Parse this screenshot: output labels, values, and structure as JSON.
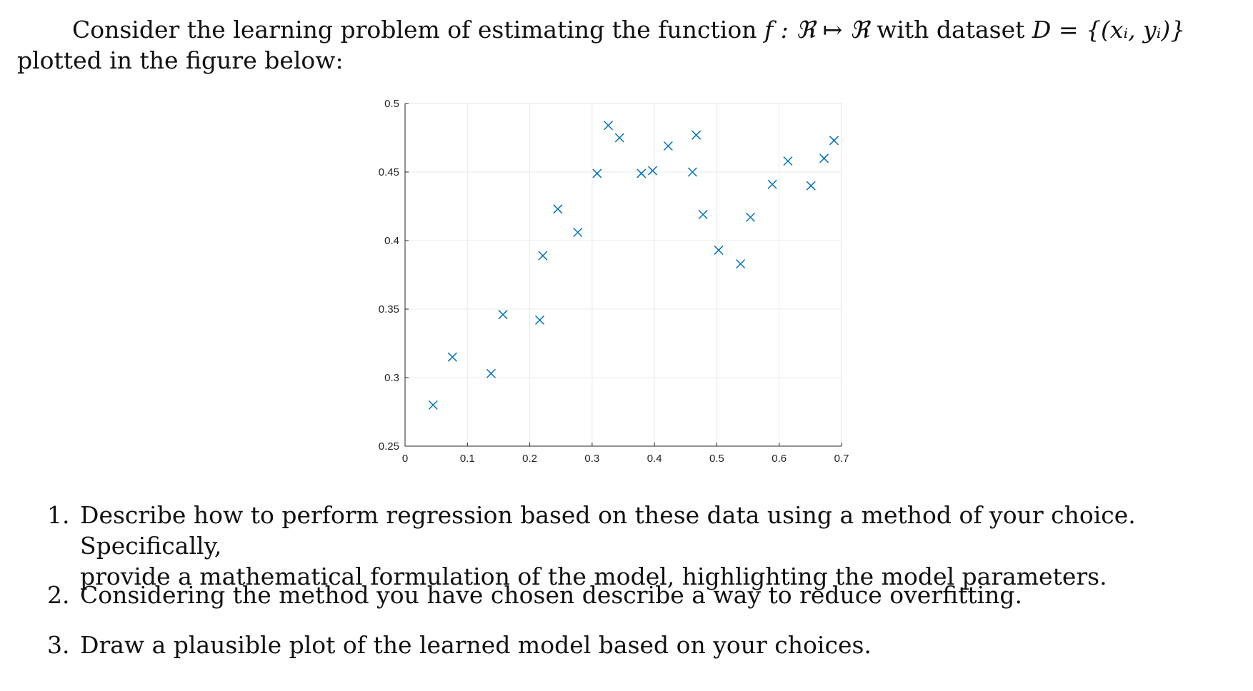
{
  "intro": {
    "line1": "Consider the learning problem of estimating the function",
    "func": "f : ℜ ↦ ℜ",
    "with_dataset": "with dataset",
    "dataset": "D = {(xᵢ, yᵢ)}",
    "rest": "plotted in the figure below:"
  },
  "chart_data": {
    "type": "scatter",
    "marker": "x",
    "color": "#0072BD",
    "grid": true,
    "xlim": [
      0,
      0.7
    ],
    "ylim": [
      0.25,
      0.5
    ],
    "xticks": [
      "0",
      "0.1",
      "0.2",
      "0.3",
      "0.4",
      "0.5",
      "0.6",
      "0.7"
    ],
    "yticks": [
      "0.25",
      "0.3",
      "0.35",
      "0.4",
      "0.45",
      "0.5"
    ],
    "points": [
      {
        "x": 0.045,
        "y": 0.28
      },
      {
        "x": 0.076,
        "y": 0.315
      },
      {
        "x": 0.138,
        "y": 0.303
      },
      {
        "x": 0.157,
        "y": 0.346
      },
      {
        "x": 0.216,
        "y": 0.342
      },
      {
        "x": 0.221,
        "y": 0.389
      },
      {
        "x": 0.245,
        "y": 0.423
      },
      {
        "x": 0.277,
        "y": 0.406
      },
      {
        "x": 0.308,
        "y": 0.449
      },
      {
        "x": 0.326,
        "y": 0.484
      },
      {
        "x": 0.344,
        "y": 0.475
      },
      {
        "x": 0.379,
        "y": 0.449
      },
      {
        "x": 0.397,
        "y": 0.451
      },
      {
        "x": 0.422,
        "y": 0.469
      },
      {
        "x": 0.461,
        "y": 0.45
      },
      {
        "x": 0.467,
        "y": 0.477
      },
      {
        "x": 0.478,
        "y": 0.419
      },
      {
        "x": 0.503,
        "y": 0.393
      },
      {
        "x": 0.538,
        "y": 0.383
      },
      {
        "x": 0.554,
        "y": 0.417
      },
      {
        "x": 0.589,
        "y": 0.441
      },
      {
        "x": 0.614,
        "y": 0.458
      },
      {
        "x": 0.651,
        "y": 0.44
      },
      {
        "x": 0.672,
        "y": 0.46
      },
      {
        "x": 0.688,
        "y": 0.473
      }
    ]
  },
  "questions": [
    {
      "num": "1.",
      "line1": "Describe how to perform regression based on these data using a method of your choice. Specifically,",
      "line2": "provide a mathematical formulation of the model, highlighting the model parameters."
    },
    {
      "num": "2.",
      "line1": "Considering the method you have chosen describe a way to reduce overfitting."
    },
    {
      "num": "3.",
      "line1": "Draw a plausible plot of the learned model based on your choices."
    }
  ]
}
